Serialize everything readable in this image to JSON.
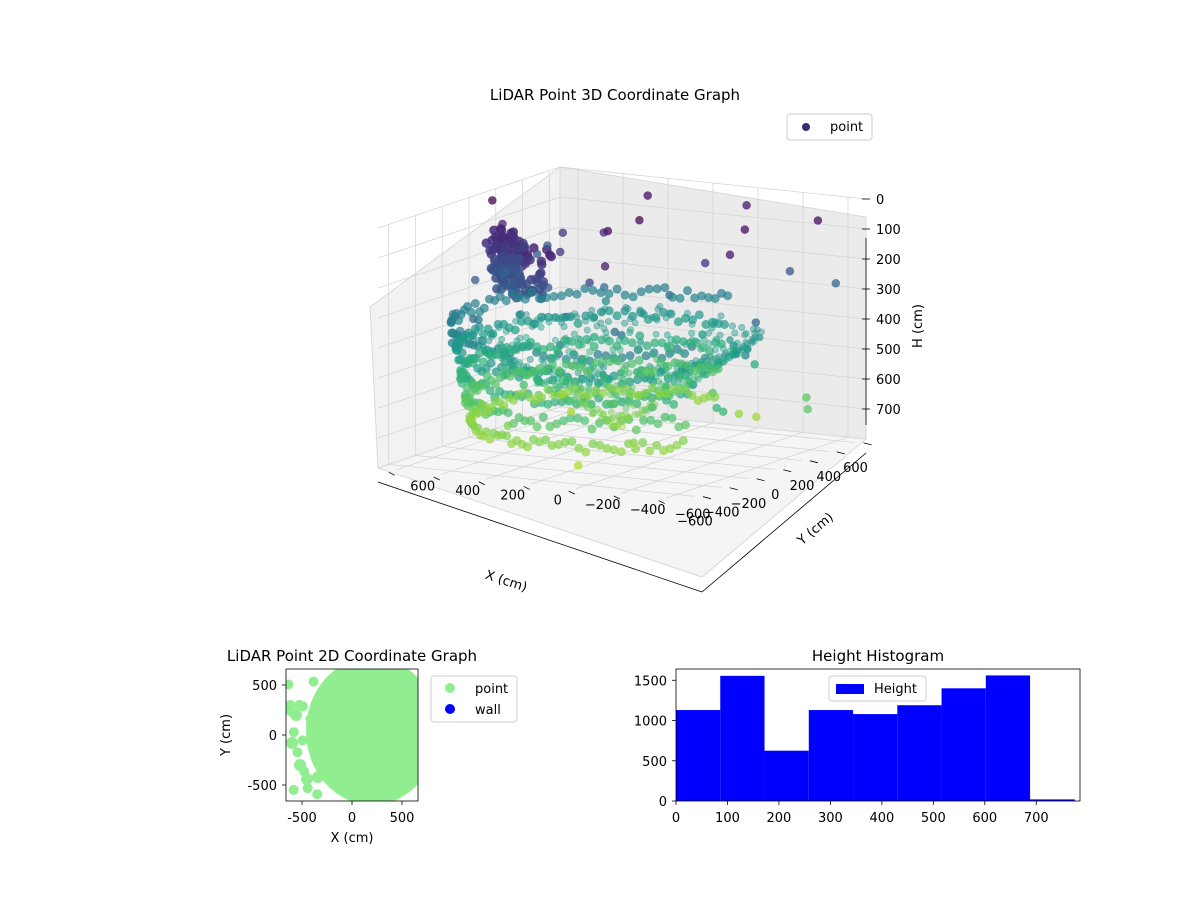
{
  "figure": {
    "charts": [
      {
        "id": "lidar-3d",
        "type": "scatter",
        "title": "LiDAR Point 3D Coordinate Graph",
        "xlabel": "X (cm)",
        "ylabel": "Y (cm)",
        "zlabel": "H (cm)",
        "xticks": [
          "−600",
          "−400",
          "−200",
          "0",
          "200",
          "400",
          "600"
        ],
        "yticks": [
          "−600",
          "−400",
          "−200",
          "0",
          "200",
          "400",
          "600"
        ],
        "zticks": [
          "0",
          "100",
          "200",
          "300",
          "400",
          "500",
          "600",
          "700"
        ],
        "zinverted": true,
        "legend": [
          {
            "label": "point",
            "color": "#3b2a78"
          }
        ],
        "legend_position": "upper-right",
        "colormap": "viridis",
        "grid": true
      },
      {
        "id": "lidar-2d",
        "type": "scatter",
        "title": "LiDAR Point 2D Coordinate Graph",
        "xlabel": "X (cm)",
        "ylabel": "Y (cm)",
        "xlim": [
          -660,
          660
        ],
        "ylim": [
          -660,
          660
        ],
        "xticks": [
          -500,
          0,
          500
        ],
        "yticks": [
          -500,
          0,
          500
        ],
        "legend": [
          {
            "label": "point",
            "color": "#90ee90"
          },
          {
            "label": "wall",
            "color": "#0000ff"
          }
        ],
        "legend_position": "outside-right",
        "grid": false
      },
      {
        "id": "height-hist",
        "type": "bar",
        "title": "Height Histogram",
        "series": [
          {
            "name": "Height",
            "color": "#0000ff"
          }
        ],
        "bin_edges": [
          0,
          86,
          172,
          258,
          344,
          430,
          516,
          602,
          688,
          775
        ],
        "counts": [
          1130,
          1555,
          625,
          1130,
          1080,
          1190,
          1400,
          1560,
          20
        ],
        "xlim": [
          0,
          785
        ],
        "ylim": [
          0,
          1640
        ],
        "xticks": [
          0,
          100,
          200,
          300,
          400,
          500,
          600,
          700
        ],
        "yticks": [
          0,
          500,
          1000,
          1500
        ],
        "legend_position": "upper-center",
        "grid": false
      }
    ]
  }
}
